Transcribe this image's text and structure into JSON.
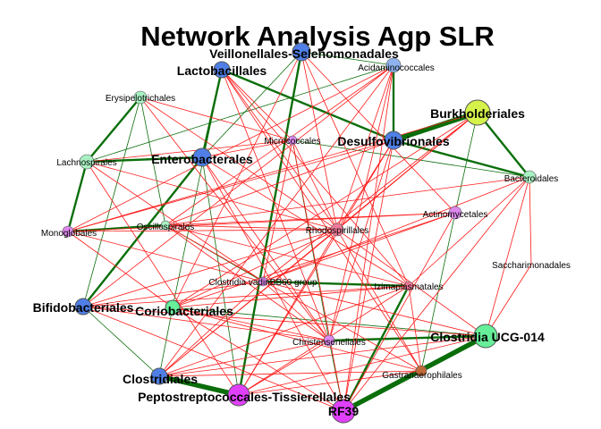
{
  "title": "Network Analysis Agp SLR",
  "colors": {
    "positive_edge": "#0a6e0a",
    "negative_edge": "#ff1a1a",
    "blue_node": "#4f7fe6",
    "light_blue_node": "#8fb3ee",
    "green_node": "#66ee99",
    "light_green_node": "#a8f0c2",
    "magenta_node": "#e040fb",
    "violet_node": "#dd88ee",
    "pink_node": "#f07a9a",
    "yellow_node": "#d4f24a",
    "brown_node": "#c06a3a"
  },
  "nodes": [
    {
      "id": "veillonellales",
      "label": "Veillonellales-Selenomonadales",
      "size": "big",
      "color": "blue_node"
    },
    {
      "id": "acidaminococcales",
      "label": "Acidaminococcales",
      "size": "small",
      "color": "light_blue_node"
    },
    {
      "id": "lactobacillales",
      "label": "Lactobacillales",
      "size": "big",
      "color": "blue_node"
    },
    {
      "id": "erysipelotrichales",
      "label": "Erysipelotrichales",
      "size": "small",
      "color": "light_green_node"
    },
    {
      "id": "burkholderiales",
      "label": "Burkholderiales",
      "size": "big",
      "color": "yellow_node"
    },
    {
      "id": "micrococcales",
      "label": "Micrococcales",
      "size": "small",
      "color": "violet_node"
    },
    {
      "id": "desulfovibrionales",
      "label": "Desulfovibrionales",
      "size": "big",
      "color": "blue_node"
    },
    {
      "id": "lachnospirales",
      "label": "Lachnospirales",
      "size": "small",
      "color": "light_green_node"
    },
    {
      "id": "enterobacterales",
      "label": "Enterobacterales",
      "size": "big",
      "color": "blue_node"
    },
    {
      "id": "bacteroidales",
      "label": "Bacteroidales",
      "size": "small",
      "color": "light_green_node"
    },
    {
      "id": "actinomycetales",
      "label": "Actinomycetales",
      "size": "small",
      "color": "violet_node"
    },
    {
      "id": "monoglobales",
      "label": "Monoglobales",
      "size": "small",
      "color": "violet_node"
    },
    {
      "id": "oscillospirales",
      "label": "Oscillospirales",
      "size": "small",
      "color": "light_green_node"
    },
    {
      "id": "rhodospirillales",
      "label": "Rhodospirillales",
      "size": "small",
      "color": "pink_node"
    },
    {
      "id": "saccharimonadales",
      "label": "Saccharimonadales",
      "size": "small",
      "color": "none"
    },
    {
      "id": "clostridia_vadin",
      "label": "Clostridia vadinBB60 group",
      "size": "small",
      "color": "violet_node"
    },
    {
      "id": "izimaplasmatales",
      "label": "Izimaplasmatales",
      "size": "small",
      "color": "pink_node"
    },
    {
      "id": "bifidobacteriales",
      "label": "Bifidobacteriales",
      "size": "big",
      "color": "blue_node"
    },
    {
      "id": "coriobacteriales",
      "label": "Coriobacteriales",
      "size": "big",
      "color": "green_node"
    },
    {
      "id": "christensenellales",
      "label": "Christensenellales",
      "size": "small",
      "color": "violet_node"
    },
    {
      "id": "clostridia_ucg014",
      "label": "Clostridia UCG-014",
      "size": "big",
      "color": "green_node"
    },
    {
      "id": "gastranaerophilales",
      "label": "Gastranaerophilales",
      "size": "small",
      "color": "brown_node"
    },
    {
      "id": "clostridiales",
      "label": "Clostridiales",
      "size": "big",
      "color": "blue_node"
    },
    {
      "id": "peptostreptococcales",
      "label": "Peptostreptococcales-Tissierellales",
      "size": "big",
      "color": "magenta_node"
    },
    {
      "id": "rf39",
      "label": "RF39",
      "size": "big",
      "color": "magenta_node"
    }
  ],
  "edges": [
    {
      "from": "peptostreptococcales",
      "to": "clostridiales",
      "sign": "positive",
      "weight": 3
    },
    {
      "from": "rf39",
      "to": "clostridia_ucg014",
      "sign": "positive",
      "weight": 3
    },
    {
      "from": "desulfovibrionales",
      "to": "burkholderiales",
      "sign": "positive",
      "weight": 3
    },
    {
      "from": "lactobacillales",
      "to": "enterobacterales",
      "sign": "positive",
      "weight": 2
    },
    {
      "from": "lactobacillales",
      "to": "desulfovibrionales",
      "sign": "positive",
      "weight": 2
    },
    {
      "from": "lachnospirales",
      "to": "erysipelotrichales",
      "sign": "positive",
      "weight": 2
    },
    {
      "from": "lachnospirales",
      "to": "monoglobales",
      "sign": "positive",
      "weight": 2
    },
    {
      "from": "monoglobales",
      "to": "oscillospirales",
      "sign": "positive",
      "weight": 2
    },
    {
      "from": "enterobacterales",
      "to": "lachnospirales",
      "sign": "positive",
      "weight": 2
    },
    {
      "from": "enterobacterales",
      "to": "bifidobacteriales",
      "sign": "positive",
      "weight": 2
    },
    {
      "from": "veillonellales",
      "to": "peptostreptococcales",
      "sign": "positive",
      "weight": 2
    },
    {
      "from": "acidaminococcales",
      "to": "desulfovibrionales",
      "sign": "positive",
      "weight": 2
    },
    {
      "from": "desulfovibrionales",
      "to": "bacteroidales",
      "sign": "positive",
      "weight": 2
    },
    {
      "from": "burkholderiales",
      "to": "bacteroidales",
      "sign": "positive",
      "weight": 2
    },
    {
      "from": "clostridia_ucg014",
      "to": "christensenellales",
      "sign": "positive",
      "weight": 2
    },
    {
      "from": "clostridia_ucg014",
      "to": "gastranaerophilales",
      "sign": "positive",
      "weight": 2
    },
    {
      "from": "clostridia_vadin",
      "to": "izimaplasmatales",
      "sign": "positive",
      "weight": 2
    },
    {
      "from": "izimaplasmatales",
      "to": "rf39",
      "sign": "positive",
      "weight": 2
    },
    {
      "from": "clostridiales",
      "to": "coriobacteriales",
      "sign": "positive",
      "weight": 1
    },
    {
      "from": "veillonellales",
      "to": "enterobacterales",
      "sign": "positive",
      "weight": 1
    },
    {
      "from": "veillonellales",
      "to": "acidaminococcales",
      "sign": "positive",
      "weight": 1
    },
    {
      "from": "lactobacillales",
      "to": "coriobacteriales",
      "sign": "positive",
      "weight": 1
    },
    {
      "from": "erysipelotrichales",
      "to": "oscillospirales",
      "sign": "positive",
      "weight": 1
    },
    {
      "from": "burkholderiales",
      "to": "actinomycetales",
      "sign": "positive",
      "weight": 1
    },
    {
      "from": "christensenellales",
      "to": "rf39",
      "sign": "positive",
      "weight": 1
    },
    {
      "from": "bifidobacteriales",
      "to": "clostridiales",
      "sign": "positive",
      "weight": 1
    },
    {
      "from": "enterobacterales",
      "to": "peptostreptococcales",
      "sign": "positive",
      "weight": 1
    },
    {
      "from": "erysipelotrichales",
      "to": "bifidobacteriales",
      "sign": "positive",
      "weight": 1
    },
    {
      "from": "coriobacteriales",
      "to": "clostridia_ucg014",
      "sign": "positive",
      "weight": 1
    },
    {
      "from": "lachnospirales",
      "to": "acidaminococcales",
      "sign": "positive",
      "weight": 1
    },
    {
      "from": "micrococcales",
      "to": "bacteroidales",
      "sign": "positive",
      "weight": 1
    },
    {
      "from": "actinomycetales",
      "to": "gastranaerophilales",
      "sign": "positive",
      "weight": 1
    },
    {
      "from": "micrococcales",
      "to": "christensenellales",
      "sign": "positive",
      "weight": 1
    },
    {
      "from": "oscillospirales",
      "to": "clostridia_vadin",
      "sign": "positive",
      "weight": 1
    },
    {
      "from": "veillonellales",
      "to": "rhodospirillales",
      "sign": "negative",
      "weight": 1
    },
    {
      "from": "veillonellales",
      "to": "izimaplasmatales",
      "sign": "negative",
      "weight": 1
    },
    {
      "from": "veillonellales",
      "to": "actinomycetales",
      "sign": "negative",
      "weight": 1
    },
    {
      "from": "veillonellales",
      "to": "coriobacteriales",
      "sign": "negative",
      "weight": 1
    },
    {
      "from": "acidaminococcales",
      "to": "rhodospirillales",
      "sign": "negative",
      "weight": 1
    },
    {
      "from": "acidaminococcales",
      "to": "bifidobacteriales",
      "sign": "negative",
      "weight": 1
    },
    {
      "from": "acidaminococcales",
      "to": "clostridiales",
      "sign": "negative",
      "weight": 1
    },
    {
      "from": "acidaminococcales",
      "to": "christensenellales",
      "sign": "negative",
      "weight": 1
    },
    {
      "from": "acidaminococcales",
      "to": "rf39",
      "sign": "negative",
      "weight": 1
    },
    {
      "from": "lactobacillales",
      "to": "micrococcales",
      "sign": "negative",
      "weight": 1
    },
    {
      "from": "lactobacillales",
      "to": "rhodospirillales",
      "sign": "negative",
      "weight": 1
    },
    {
      "from": "lactobacillales",
      "to": "izimaplasmatales",
      "sign": "negative",
      "weight": 1
    },
    {
      "from": "lactobacillales",
      "to": "christensenellales",
      "sign": "negative",
      "weight": 1
    },
    {
      "from": "lactobacillales",
      "to": "gastranaerophilales",
      "sign": "negative",
      "weight": 1
    },
    {
      "from": "erysipelotrichales",
      "to": "micrococcales",
      "sign": "negative",
      "weight": 1
    },
    {
      "from": "erysipelotrichales",
      "to": "rhodospirillales",
      "sign": "negative",
      "weight": 1
    },
    {
      "from": "erysipelotrichales",
      "to": "christensenellales",
      "sign": "negative",
      "weight": 1
    },
    {
      "from": "burkholderiales",
      "to": "rhodospirillales",
      "sign": "negative",
      "weight": 1
    },
    {
      "from": "burkholderiales",
      "to": "clostridia_vadin",
      "sign": "negative",
      "weight": 1
    },
    {
      "from": "burkholderiales",
      "to": "coriobacteriales",
      "sign": "negative",
      "weight": 1
    },
    {
      "from": "burkholderiales",
      "to": "clostridiales",
      "sign": "negative",
      "weight": 1
    },
    {
      "from": "desulfovibrionales",
      "to": "rhodospirillales",
      "sign": "negative",
      "weight": 1
    },
    {
      "from": "desulfovibrionales",
      "to": "oscillospirales",
      "sign": "negative",
      "weight": 1
    },
    {
      "from": "desulfovibrionales",
      "to": "peptostreptococcales",
      "sign": "negative",
      "weight": 1
    },
    {
      "from": "desulfovibrionales",
      "to": "christensenellales",
      "sign": "negative",
      "weight": 1
    },
    {
      "from": "desulfovibrionales",
      "to": "rf39",
      "sign": "negative",
      "weight": 1
    },
    {
      "from": "desulfovibrionales",
      "to": "monoglobales",
      "sign": "negative",
      "weight": 1
    },
    {
      "from": "lachnospirales",
      "to": "micrococcales",
      "sign": "negative",
      "weight": 1
    },
    {
      "from": "lachnospirales",
      "to": "rhodospirillales",
      "sign": "negative",
      "weight": 1
    },
    {
      "from": "lachnospirales",
      "to": "clostridia_vadin",
      "sign": "negative",
      "weight": 1
    },
    {
      "from": "lachnospirales",
      "to": "peptostreptococcales",
      "sign": "negative",
      "weight": 1
    },
    {
      "from": "enterobacterales",
      "to": "micrococcales",
      "sign": "negative",
      "weight": 1
    },
    {
      "from": "enterobacterales",
      "to": "izimaplasmatales",
      "sign": "negative",
      "weight": 1
    },
    {
      "from": "enterobacterales",
      "to": "christensenellales",
      "sign": "negative",
      "weight": 1
    },
    {
      "from": "enterobacterales",
      "to": "rf39",
      "sign": "negative",
      "weight": 1
    },
    {
      "from": "bacteroidales",
      "to": "oscillospirales",
      "sign": "negative",
      "weight": 1
    },
    {
      "from": "bacteroidales",
      "to": "clostridia_vadin",
      "sign": "negative",
      "weight": 1
    },
    {
      "from": "bacteroidales",
      "to": "izimaplasmatales",
      "sign": "negative",
      "weight": 1
    },
    {
      "from": "bacteroidales",
      "to": "rf39",
      "sign": "negative",
      "weight": 1
    },
    {
      "from": "bacteroidales",
      "to": "clostridia_ucg014",
      "sign": "negative",
      "weight": 1
    },
    {
      "from": "actinomycetales",
      "to": "monoglobales",
      "sign": "negative",
      "weight": 1
    },
    {
      "from": "actinomycetales",
      "to": "oscillospirales",
      "sign": "negative",
      "weight": 1
    },
    {
      "from": "actinomycetales",
      "to": "clostridia_vadin",
      "sign": "negative",
      "weight": 1
    },
    {
      "from": "actinomycetales",
      "to": "coriobacteriales",
      "sign": "negative",
      "weight": 1
    },
    {
      "from": "actinomycetales",
      "to": "rf39",
      "sign": "negative",
      "weight": 1
    },
    {
      "from": "monoglobales",
      "to": "rhodospirillales",
      "sign": "negative",
      "weight": 1
    },
    {
      "from": "monoglobales",
      "to": "clostridia_vadin",
      "sign": "negative",
      "weight": 1
    },
    {
      "from": "monoglobales",
      "to": "coriobacteriales",
      "sign": "negative",
      "weight": 1
    },
    {
      "from": "oscillospirales",
      "to": "rhodospirillales",
      "sign": "negative",
      "weight": 1
    },
    {
      "from": "oscillospirales",
      "to": "izimaplasmatales",
      "sign": "negative",
      "weight": 1
    },
    {
      "from": "oscillospirales",
      "to": "christensenellales",
      "sign": "negative",
      "weight": 1
    },
    {
      "from": "oscillospirales",
      "to": "gastranaerophilales",
      "sign": "negative",
      "weight": 1
    },
    {
      "from": "rhodospirillales",
      "to": "bifidobacteriales",
      "sign": "negative",
      "weight": 1
    },
    {
      "from": "rhodospirillales",
      "to": "coriobacteriales",
      "sign": "negative",
      "weight": 1
    },
    {
      "from": "rhodospirillales",
      "to": "clostridiales",
      "sign": "negative",
      "weight": 1
    },
    {
      "from": "rhodospirillales",
      "to": "peptostreptococcales",
      "sign": "negative",
      "weight": 1
    },
    {
      "from": "rhodospirillales",
      "to": "clostridia_ucg014",
      "sign": "negative",
      "weight": 1
    },
    {
      "from": "rhodospirillales",
      "to": "gastranaerophilales",
      "sign": "negative",
      "weight": 1
    },
    {
      "from": "saccharimonadales",
      "to": "clostridia_ucg014",
      "sign": "negative",
      "weight": 1
    },
    {
      "from": "saccharimonadales",
      "to": "bacteroidales",
      "sign": "negative",
      "weight": 1
    },
    {
      "from": "clostridia_vadin",
      "to": "bifidobacteriales",
      "sign": "negative",
      "weight": 1
    },
    {
      "from": "clostridia_vadin",
      "to": "clostridiales",
      "sign": "negative",
      "weight": 1
    },
    {
      "from": "clostridia_vadin",
      "to": "christensenellales",
      "sign": "negative",
      "weight": 1
    },
    {
      "from": "clostridia_vadin",
      "to": "clostridia_ucg014",
      "sign": "negative",
      "weight": 1
    },
    {
      "from": "izimaplasmatales",
      "to": "bifidobacteriales",
      "sign": "negative",
      "weight": 1
    },
    {
      "from": "izimaplasmatales",
      "to": "coriobacteriales",
      "sign": "negative",
      "weight": 1
    },
    {
      "from": "izimaplasmatales",
      "to": "clostridiales",
      "sign": "negative",
      "weight": 1
    },
    {
      "from": "izimaplasmatales",
      "to": "peptostreptococcales",
      "sign": "negative",
      "weight": 1
    },
    {
      "from": "izimaplasmatales",
      "to": "gastranaerophilales",
      "sign": "negative",
      "weight": 1
    },
    {
      "from": "bifidobacteriales",
      "to": "christensenellales",
      "sign": "negative",
      "weight": 1
    },
    {
      "from": "bifidobacteriales",
      "to": "clostridia_ucg014",
      "sign": "negative",
      "weight": 1
    },
    {
      "from": "bifidobacteriales",
      "to": "rf39",
      "sign": "negative",
      "weight": 1
    },
    {
      "from": "coriobacteriales",
      "to": "christensenellales",
      "sign": "negative",
      "weight": 1
    },
    {
      "from": "coriobacteriales",
      "to": "gastranaerophilales",
      "sign": "negative",
      "weight": 1
    },
    {
      "from": "coriobacteriales",
      "to": "rf39",
      "sign": "negative",
      "weight": 1
    },
    {
      "from": "christensenellales",
      "to": "clostridiales",
      "sign": "negative",
      "weight": 1
    },
    {
      "from": "christensenellales",
      "to": "peptostreptococcales",
      "sign": "negative",
      "weight": 1
    },
    {
      "from": "clostridia_ucg014",
      "to": "clostridiales",
      "sign": "negative",
      "weight": 1
    },
    {
      "from": "clostridia_ucg014",
      "to": "peptostreptococcales",
      "sign": "negative",
      "weight": 1
    },
    {
      "from": "gastranaerophilales",
      "to": "clostridiales",
      "sign": "negative",
      "weight": 1
    },
    {
      "from": "gastranaerophilales",
      "to": "peptostreptococcales",
      "sign": "negative",
      "weight": 1
    },
    {
      "from": "micrococcales",
      "to": "rhodospirillales",
      "sign": "negative",
      "weight": 1
    },
    {
      "from": "micrococcales",
      "to": "clostridia_vadin",
      "sign": "negative",
      "weight": 1
    },
    {
      "from": "micrococcales",
      "to": "rf39",
      "sign": "negative",
      "weight": 1
    },
    {
      "from": "burkholderiales",
      "to": "monoglobales",
      "sign": "negative",
      "weight": 1
    },
    {
      "from": "acidaminococcales",
      "to": "oscillospirales",
      "sign": "negative",
      "weight": 1
    },
    {
      "from": "acidaminococcales",
      "to": "monoglobales",
      "sign": "negative",
      "weight": 1
    }
  ]
}
